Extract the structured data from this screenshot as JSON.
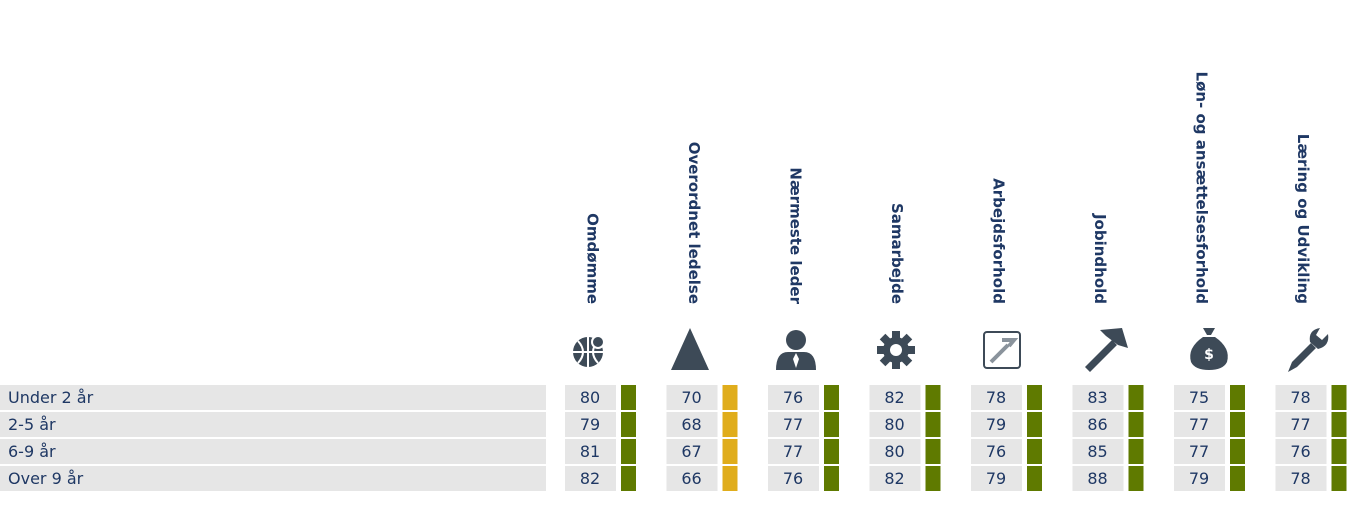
{
  "table": {
    "columns": [
      "Omdømme",
      "Overordnet ledelse",
      "Nærmeste leder",
      "Samarbejde",
      "Arbejdsforhold",
      "Jobindhold",
      "Løn- og ansættelsesforhold",
      "Læring og Udvikling"
    ],
    "rows": [
      {
        "label": "Under 2 år",
        "values": [
          "80",
          "70",
          "76",
          "82",
          "78",
          "83",
          "75",
          "78"
        ],
        "colors": [
          "#5f7a00",
          "#e0ad1c",
          "#5f7a00",
          "#5f7a00",
          "#5f7a00",
          "#5f7a00",
          "#5f7a00",
          "#5f7a00"
        ]
      },
      {
        "label": "2-5 år",
        "values": [
          "79",
          "68",
          "77",
          "80",
          "79",
          "86",
          "77",
          "77"
        ],
        "colors": [
          "#5f7a00",
          "#e0ad1c",
          "#5f7a00",
          "#5f7a00",
          "#5f7a00",
          "#5f7a00",
          "#5f7a00",
          "#5f7a00"
        ]
      },
      {
        "label": "6-9 år",
        "values": [
          "81",
          "67",
          "77",
          "80",
          "76",
          "85",
          "77",
          "76"
        ],
        "colors": [
          "#5f7a00",
          "#e0ad1c",
          "#5f7a00",
          "#5f7a00",
          "#5f7a00",
          "#5f7a00",
          "#5f7a00",
          "#5f7a00"
        ]
      },
      {
        "label": "Over 9 år",
        "values": [
          "82",
          "66",
          "76",
          "82",
          "79",
          "88",
          "79",
          "78"
        ],
        "colors": [
          "#5f7a00",
          "#e0ad1c",
          "#5f7a00",
          "#5f7a00",
          "#5f7a00",
          "#5f7a00",
          "#5f7a00",
          "#5f7a00"
        ]
      }
    ]
  }
}
